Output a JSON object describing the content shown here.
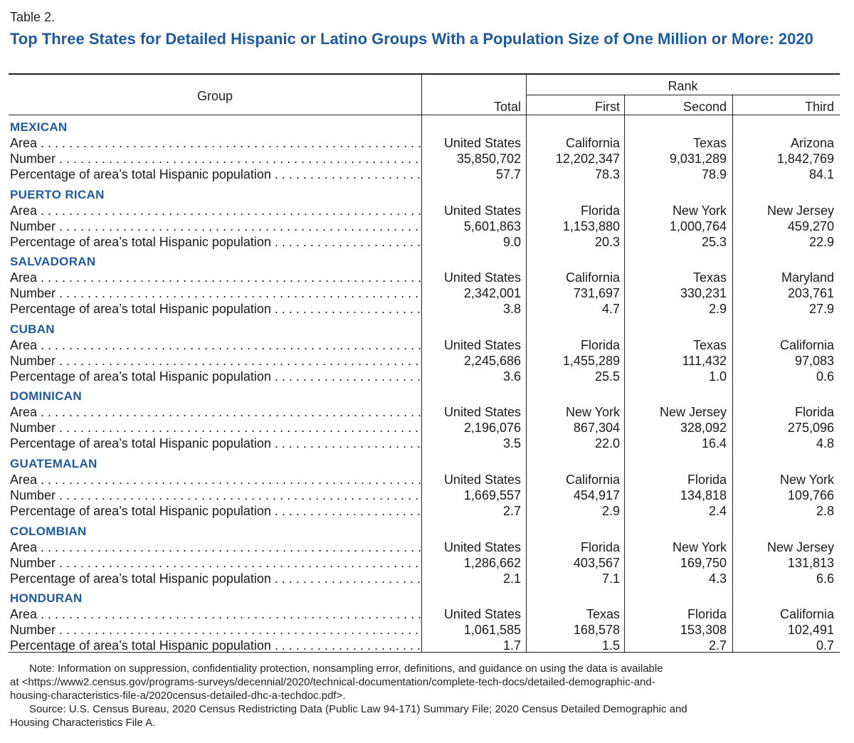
{
  "table_label": "Table 2.",
  "title": "Top Three States for Detailed Hispanic or Latino Groups With a Population Size of One Million or More: 2020",
  "headers": {
    "group": "Group",
    "rank": "Rank",
    "total": "Total",
    "first": "First",
    "second": "Second",
    "third": "Third"
  },
  "row_labels": {
    "area": "Area",
    "number": "Number",
    "percentage": "Percentage of area’s total Hispanic population"
  },
  "groups": [
    {
      "name": "MEXICAN",
      "area": [
        "United States",
        "California",
        "Texas",
        "Arizona"
      ],
      "number": [
        "35,850,702",
        "12,202,347",
        "9,031,289",
        "1,842,769"
      ],
      "percentage": [
        "57.7",
        "78.3",
        "78.9",
        "84.1"
      ]
    },
    {
      "name": "PUERTO RICAN",
      "area": [
        "United States",
        "Florida",
        "New York",
        "New Jersey"
      ],
      "number": [
        "5,601,863",
        "1,153,880",
        "1,000,764",
        "459,270"
      ],
      "percentage": [
        "9.0",
        "20.3",
        "25.3",
        "22.9"
      ]
    },
    {
      "name": "SALVADORAN",
      "area": [
        "United States",
        "California",
        "Texas",
        "Maryland"
      ],
      "number": [
        "2,342,001",
        "731,697",
        "330,231",
        "203,761"
      ],
      "percentage": [
        "3.8",
        "4.7",
        "2.9",
        "27.9"
      ]
    },
    {
      "name": "CUBAN",
      "area": [
        "United States",
        "Florida",
        "Texas",
        "California"
      ],
      "number": [
        "2,245,686",
        "1,455,289",
        "111,432",
        "97,083"
      ],
      "percentage": [
        "3.6",
        "25.5",
        "1.0",
        "0.6"
      ]
    },
    {
      "name": "DOMINICAN",
      "area": [
        "United States",
        "New York",
        "New Jersey",
        "Florida"
      ],
      "number": [
        "2,196,076",
        "867,304",
        "328,092",
        "275,096"
      ],
      "percentage": [
        "3.5",
        "22.0",
        "16.4",
        "4.8"
      ]
    },
    {
      "name": "GUATEMALAN",
      "area": [
        "United States",
        "California",
        "Florida",
        "New York"
      ],
      "number": [
        "1,669,557",
        "454,917",
        "134,818",
        "109,766"
      ],
      "percentage": [
        "2.7",
        "2.9",
        "2.4",
        "2.8"
      ]
    },
    {
      "name": "COLOMBIAN",
      "area": [
        "United States",
        "Florida",
        "New York",
        "New Jersey"
      ],
      "number": [
        "1,286,662",
        "403,567",
        "169,750",
        "131,813"
      ],
      "percentage": [
        "2.1",
        "7.1",
        "4.3",
        "6.6"
      ]
    },
    {
      "name": "HONDURAN",
      "area": [
        "United States",
        "Texas",
        "Florida",
        "California"
      ],
      "number": [
        "1,061,585",
        "168,578",
        "153,308",
        "102,491"
      ],
      "percentage": [
        "1.7",
        "1.5",
        "2.7",
        "0.7"
      ]
    }
  ],
  "note": {
    "line1": "Note: Information on suppression, confidentiality protection, nonsampling error, definitions, and guidance on using the data is available",
    "line2": "at <https://www2.census.gov/programs-surveys/decennial/2020/technical-documentation/complete-tech-docs/detailed-demographic-and-",
    "line3": "housing-characteristics-file-a/2020census-detailed-dhc-a-techdoc.pdf>.",
    "source1": "Source: U.S. Census Bureau, 2020 Census Redistricting Data (Public Law 94-171) Summary File; 2020 Census Detailed Demographic and",
    "source2": "Housing Characteristics File A."
  }
}
